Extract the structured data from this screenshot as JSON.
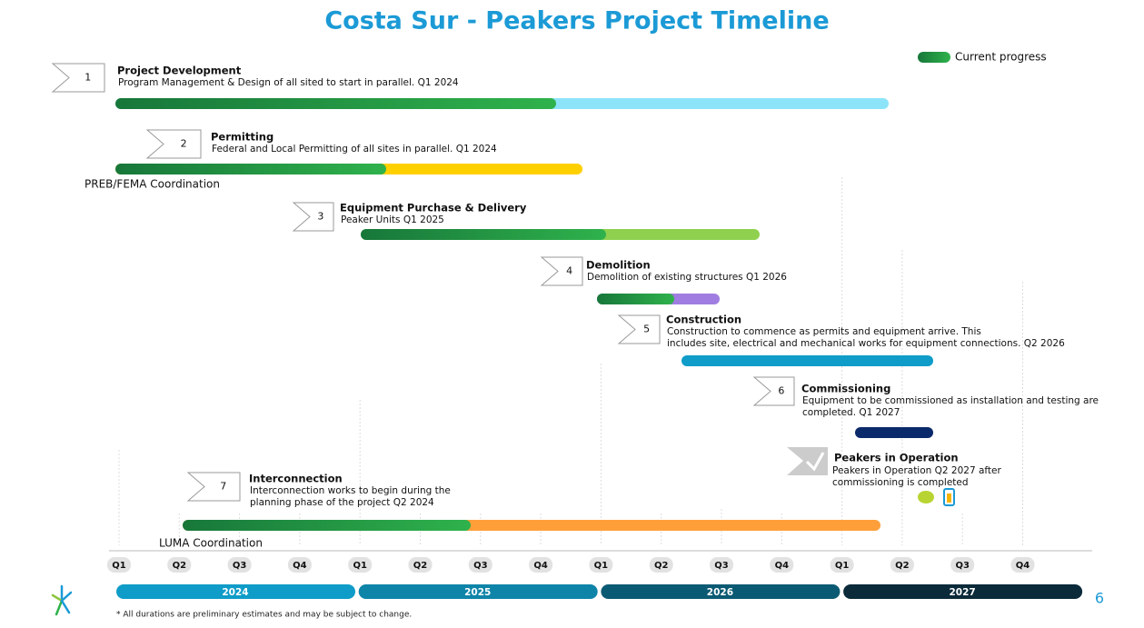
{
  "title": "Costa Sur - Peakers Project Timeline",
  "legend": "Current progress",
  "tasks": [
    {
      "number": 1,
      "title": "Project Development",
      "description": [
        "Program Management & Design of all sited to start in parallel.  Q1 2024"
      ]
    },
    {
      "number": 2,
      "title": "Permitting",
      "description": [
        "Federal and Local Permitting of all sites in parallel.  Q1 2024"
      ],
      "note": "PREB/FEMA Coordination"
    },
    {
      "number": 3,
      "title": "Equipment Purchase & Delivery",
      "description": [
        "Peaker Units  Q1 2025"
      ]
    },
    {
      "number": 4,
      "title": "Demolition",
      "description": [
        "Demolition of existing structures  Q1 2026"
      ]
    },
    {
      "number": 5,
      "title": "Construction",
      "description": [
        "Construction to commence as permits and equipment arrive. This",
        "includes site, electrical and mechanical works for equipment connections. Q2 2026"
      ]
    },
    {
      "number": 6,
      "title": "Commissioning",
      "description": [
        "Equipment to be commissioned as installation and testing are",
        "completed.  Q1 2027"
      ]
    },
    {
      "number": 7,
      "title": "Interconnection",
      "description": [
        "Interconnection works to begin during the",
        "planning phase of the project  Q2 2024"
      ],
      "note": "LUMA Coordination"
    }
  ],
  "milestone": {
    "title": "Peakers in Operation",
    "description": [
      "Peakers in Operation Q2 2027 after",
      "commissioning is completed"
    ]
  },
  "quarters": [
    "Q1",
    "Q2",
    "Q3",
    "Q4",
    "Q1",
    "Q2",
    "Q3",
    "Q4",
    "Q1",
    "Q2",
    "Q3",
    "Q4",
    "Q1",
    "Q2",
    "Q3",
    "Q4"
  ],
  "years": [
    "2024",
    "2025",
    "2026",
    "2027"
  ],
  "footnote": "* All durations are preliminary estimates and may be subject to change.",
  "page_number": "6"
}
